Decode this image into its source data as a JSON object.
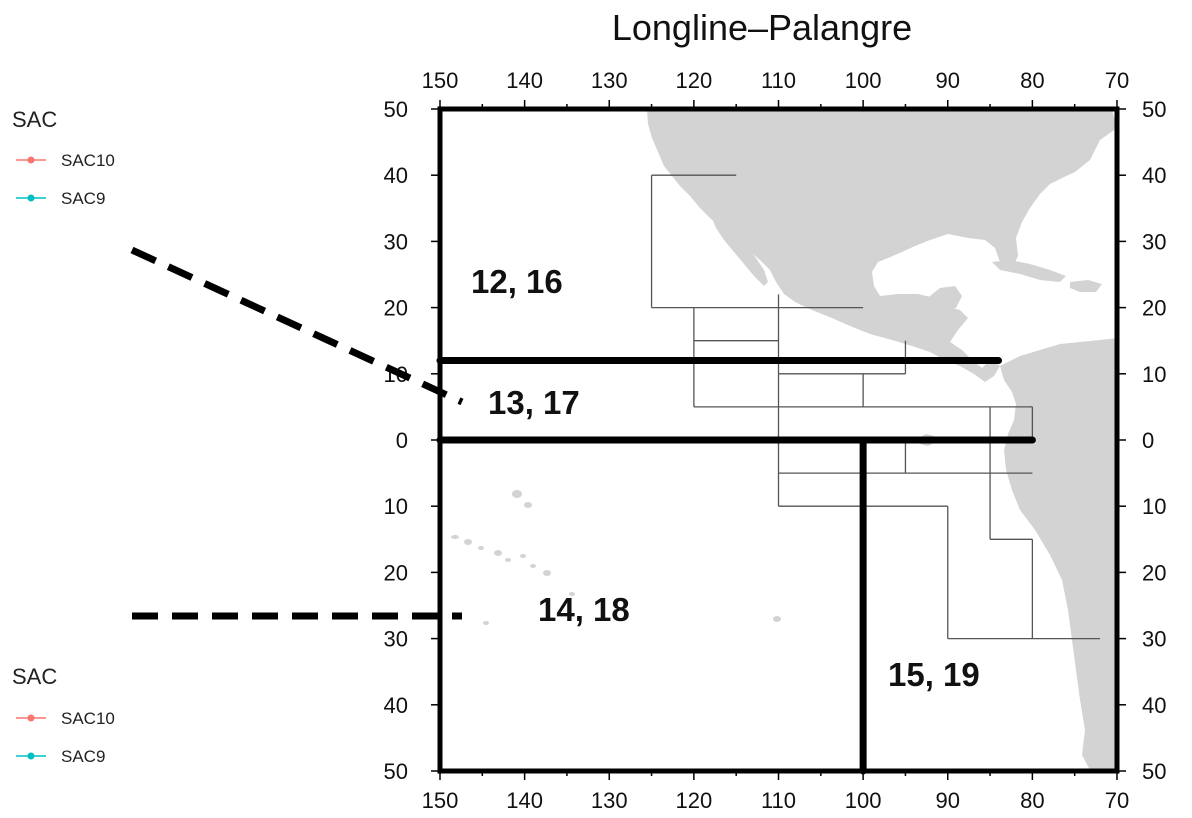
{
  "title": "Longline–Palangre",
  "longitude_ticks": [
    "150",
    "140",
    "130",
    "120",
    "110",
    "100",
    "90",
    "80",
    "70"
  ],
  "latitude_ticks": [
    "50",
    "40",
    "30",
    "20",
    "10",
    "0",
    "10",
    "20",
    "30",
    "40",
    "50"
  ],
  "area_labels": [
    {
      "id": "a1",
      "text": "12, 16"
    },
    {
      "id": "a2",
      "text": "13, 17"
    },
    {
      "id": "a3",
      "text": "14, 18"
    },
    {
      "id": "a4",
      "text": "15, 19"
    }
  ],
  "legends": [
    {
      "title": "SAC",
      "items": [
        {
          "label": "SAC10",
          "color": "#f8766d"
        },
        {
          "label": "SAC9",
          "color": "#00bfc4"
        }
      ]
    },
    {
      "title": "SAC",
      "items": [
        {
          "label": "SAC10",
          "color": "#f8766d"
        },
        {
          "label": "SAC9",
          "color": "#00bfc4"
        }
      ]
    }
  ],
  "colors": {
    "land": "#d3d3d3",
    "border": "#000000",
    "grid_line": "#555555"
  }
}
